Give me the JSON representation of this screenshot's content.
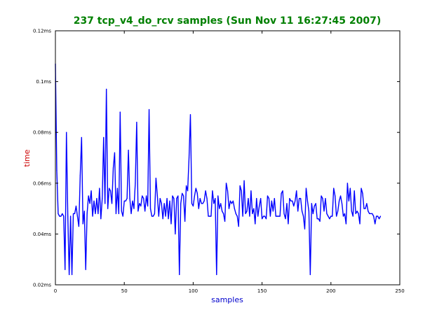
{
  "colors": {
    "title": "#008000",
    "xlabel": "#0000cc",
    "ylabel": "#cc0000",
    "line": "#0000ff",
    "axes": "#000000"
  },
  "chart_data": {
    "type": "line",
    "title": "237 tcp_v4_do_rcv samples (Sun Nov 11 16:27:45 2007)",
    "xlabel": "samples",
    "ylabel": "time",
    "xlim": [
      0,
      250
    ],
    "ylim": [
      0.02,
      0.12
    ],
    "grid": false,
    "legend": "none",
    "x_ticks": [
      {
        "value": 0,
        "label": "0"
      },
      {
        "value": 50,
        "label": "50"
      },
      {
        "value": 100,
        "label": "100"
      },
      {
        "value": 150,
        "label": "150"
      },
      {
        "value": 200,
        "label": "200"
      },
      {
        "value": 250,
        "label": "250"
      }
    ],
    "y_ticks": [
      {
        "value": 0.02,
        "label": "0.02ms"
      },
      {
        "value": 0.04,
        "label": "0.04ms"
      },
      {
        "value": 0.06,
        "label": "0.06ms"
      },
      {
        "value": 0.08,
        "label": "0.08ms"
      },
      {
        "value": 0.1,
        "label": "0.1ms"
      },
      {
        "value": 0.12,
        "label": "0.12ms"
      }
    ],
    "series": [
      {
        "x_start": 0,
        "x_step": 1,
        "values": [
          0.107,
          0.065,
          0.048,
          0.047,
          0.047,
          0.048,
          0.047,
          0.026,
          0.08,
          0.047,
          0.024,
          0.047,
          0.024,
          0.048,
          0.048,
          0.051,
          0.047,
          0.043,
          0.063,
          0.078,
          0.044,
          0.049,
          0.026,
          0.048,
          0.055,
          0.052,
          0.057,
          0.047,
          0.053,
          0.048,
          0.054,
          0.048,
          0.058,
          0.046,
          0.054,
          0.078,
          0.052,
          0.097,
          0.05,
          0.058,
          0.057,
          0.052,
          0.066,
          0.072,
          0.048,
          0.058,
          0.048,
          0.088,
          0.049,
          0.047,
          0.053,
          0.053,
          0.054,
          0.073,
          0.054,
          0.048,
          0.053,
          0.05,
          0.06,
          0.084,
          0.049,
          0.052,
          0.051,
          0.055,
          0.054,
          0.049,
          0.055,
          0.051,
          0.089,
          0.05,
          0.047,
          0.047,
          0.048,
          0.062,
          0.055,
          0.047,
          0.054,
          0.052,
          0.046,
          0.052,
          0.047,
          0.054,
          0.046,
          0.053,
          0.044,
          0.055,
          0.054,
          0.04,
          0.054,
          0.055,
          0.024,
          0.052,
          0.056,
          0.055,
          0.045,
          0.059,
          0.057,
          0.07,
          0.087,
          0.052,
          0.051,
          0.055,
          0.058,
          0.056,
          0.05,
          0.054,
          0.052,
          0.052,
          0.053,
          0.057,
          0.054,
          0.047,
          0.047,
          0.047,
          0.057,
          0.052,
          0.054,
          0.024,
          0.055,
          0.05,
          0.052,
          0.049,
          0.048,
          0.045,
          0.06,
          0.057,
          0.05,
          0.053,
          0.052,
          0.053,
          0.05,
          0.048,
          0.047,
          0.043,
          0.059,
          0.057,
          0.047,
          0.061,
          0.048,
          0.049,
          0.054,
          0.047,
          0.057,
          0.048,
          0.05,
          0.044,
          0.054,
          0.047,
          0.051,
          0.054,
          0.046,
          0.047,
          0.047,
          0.046,
          0.055,
          0.054,
          0.047,
          0.053,
          0.049,
          0.054,
          0.047,
          0.047,
          0.047,
          0.047,
          0.056,
          0.057,
          0.048,
          0.046,
          0.052,
          0.044,
          0.054,
          0.053,
          0.053,
          0.051,
          0.053,
          0.057,
          0.049,
          0.054,
          0.054,
          0.049,
          0.047,
          0.042,
          0.058,
          0.053,
          0.049,
          0.024,
          0.052,
          0.048,
          0.051,
          0.052,
          0.046,
          0.046,
          0.045,
          0.055,
          0.054,
          0.049,
          0.054,
          0.048,
          0.047,
          0.046,
          0.047,
          0.047,
          0.058,
          0.055,
          0.047,
          0.049,
          0.053,
          0.055,
          0.052,
          0.047,
          0.048,
          0.044,
          0.06,
          0.053,
          0.058,
          0.049,
          0.047,
          0.057,
          0.048,
          0.049,
          0.048,
          0.044,
          0.058,
          0.056,
          0.05,
          0.05,
          0.052,
          0.049,
          0.048,
          0.048,
          0.048,
          0.047,
          0.044,
          0.047,
          0.047,
          0.046,
          0.047
        ]
      }
    ]
  }
}
